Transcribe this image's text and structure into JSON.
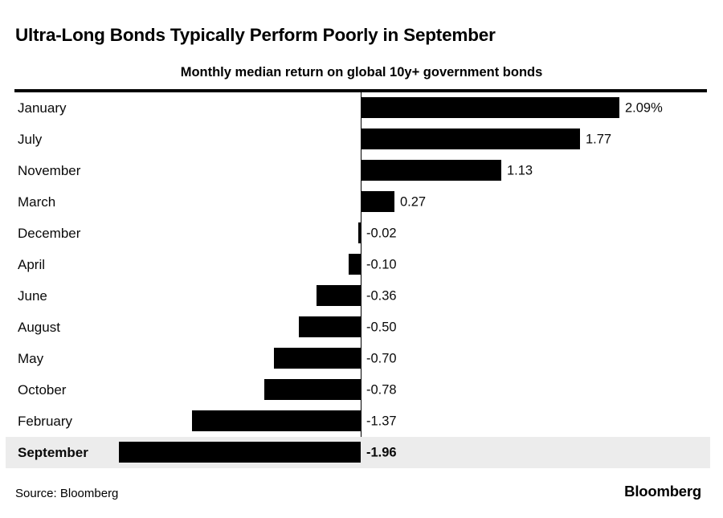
{
  "header": {
    "title": "Ultra-Long Bonds Typically Perform Poorly in September",
    "subtitle": "Monthly median return on global 10y+ government bonds"
  },
  "chart_data": {
    "type": "bar",
    "orientation": "horizontal",
    "title": "Ultra-Long Bonds Typically Perform Poorly in September",
    "subtitle": "Monthly median return on global 10y+ government bonds",
    "unit": "percent",
    "categories": [
      "January",
      "July",
      "November",
      "March",
      "December",
      "April",
      "June",
      "August",
      "May",
      "October",
      "February",
      "September"
    ],
    "values": [
      2.09,
      1.77,
      1.13,
      0.27,
      -0.02,
      -0.1,
      -0.36,
      -0.5,
      -0.7,
      -0.78,
      -1.37,
      -1.96
    ],
    "value_labels": [
      "2.09%",
      "1.77",
      "1.13",
      "0.27",
      "-0.02",
      "-0.10",
      "-0.36",
      "-0.50",
      "-0.70",
      "-0.78",
      "-1.37",
      "-1.96"
    ],
    "highlighted_category": "September",
    "xlim": [
      -2.2,
      2.3
    ],
    "baseline": 0,
    "grid": false,
    "legend": "none",
    "bar_color": "#000000",
    "highlight_row_background": "#ececec",
    "axis_line_color": "#000000"
  },
  "footer": {
    "source": "Source: Bloomberg",
    "logo": "Bloomberg"
  }
}
